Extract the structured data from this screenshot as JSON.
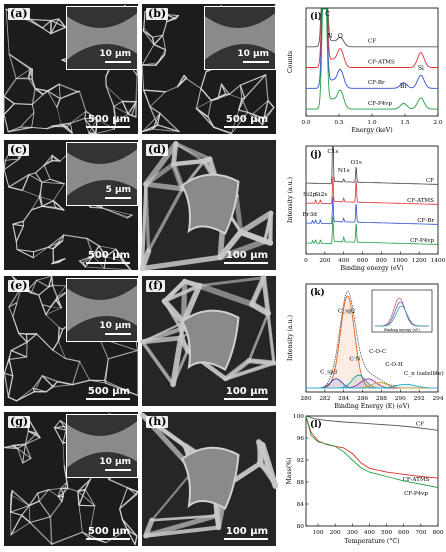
{
  "panels": {
    "a": {
      "label": "(a)",
      "scale": "500 μm",
      "inset_scale": "10 μm"
    },
    "b": {
      "label": "(b)",
      "scale": "500 μm",
      "inset_scale": "10 μm"
    },
    "c": {
      "label": "(c)",
      "scale": "500 μm",
      "inset_scale": "5 μm"
    },
    "d": {
      "label": "(d)",
      "scale": "100 μm"
    },
    "e": {
      "label": "(e)",
      "scale": "500 μm",
      "inset_scale": "10 μm"
    },
    "f": {
      "label": "(f)",
      "scale": "100 μm"
    },
    "g": {
      "label": "(g)",
      "scale": "500 μm",
      "inset_scale": "10 μm"
    },
    "h": {
      "label": "(h)",
      "scale": "100 μm"
    }
  },
  "chart_data": [
    {
      "id": "i",
      "label": "(i)",
      "type": "line",
      "xlabel": "Energy (keV)",
      "ylabel": "Counts",
      "xlim": [
        0.0,
        2.0
      ],
      "xticks": [
        "0.0",
        "0.5",
        "1.0",
        "1.5",
        "2.0"
      ],
      "peak_labels": [
        "C",
        "N",
        "O",
        "Si",
        "Br"
      ],
      "series": [
        {
          "name": "CF",
          "color": "#555555",
          "offset": 3,
          "peaks": [
            [
              0.28,
              10
            ],
            [
              0.39,
              0.3
            ],
            [
              0.52,
              0.5
            ]
          ]
        },
        {
          "name": "CF-ATMS",
          "color": "#e03030",
          "offset": 2,
          "peaks": [
            [
              0.28,
              9
            ],
            [
              0.39,
              0.4
            ],
            [
              0.52,
              1.0
            ],
            [
              1.74,
              0.8
            ]
          ]
        },
        {
          "name": "CF-Br",
          "color": "#3050d0",
          "offset": 1,
          "peaks": [
            [
              0.28,
              9
            ],
            [
              0.39,
              0.4
            ],
            [
              0.52,
              1.0
            ],
            [
              1.48,
              0.3
            ],
            [
              1.74,
              0.7
            ]
          ]
        },
        {
          "name": "CF-P4vp",
          "color": "#20a040",
          "offset": 0,
          "peaks": [
            [
              0.28,
              9
            ],
            [
              0.39,
              0.5
            ],
            [
              0.52,
              1.0
            ],
            [
              1.48,
              0.3
            ],
            [
              1.74,
              0.6
            ]
          ]
        }
      ]
    },
    {
      "id": "j",
      "label": "(j)",
      "type": "line",
      "xlabel": "Binding energy (eV)",
      "ylabel": "Intensity (a.u.)",
      "xlim": [
        0,
        1400
      ],
      "xticks": [
        "0",
        "200",
        "400",
        "600",
        "800",
        "1000",
        "1200",
        "1400"
      ],
      "peak_labels": [
        "C1s",
        "N1s",
        "O1s",
        "Si2p",
        "Si2s",
        "Br3d"
      ],
      "series": [
        {
          "name": "CF",
          "color": "#444444",
          "offset": 3,
          "peaks": [
            [
              285,
              7
            ],
            [
              400,
              0.3
            ],
            [
              532,
              1.8
            ]
          ]
        },
        {
          "name": "CF-ATMS",
          "color": "#e03030",
          "offset": 2,
          "peaks": [
            [
              102,
              0.4
            ],
            [
              153,
              0.4
            ],
            [
              285,
              3
            ],
            [
              400,
              0.4
            ],
            [
              532,
              2.5
            ]
          ]
        },
        {
          "name": "CF-Br",
          "color": "#3050d0",
          "offset": 1,
          "peaks": [
            [
              70,
              0.3
            ],
            [
              102,
              0.4
            ],
            [
              153,
              0.4
            ],
            [
              285,
              3
            ],
            [
              400,
              0.4
            ],
            [
              532,
              2.2
            ]
          ]
        },
        {
          "name": "CF-P4vp",
          "color": "#20a040",
          "offset": 0,
          "peaks": [
            [
              70,
              0.3
            ],
            [
              102,
              0.4
            ],
            [
              153,
              0.4
            ],
            [
              285,
              3
            ],
            [
              400,
              0.5
            ],
            [
              532,
              2.2
            ]
          ]
        }
      ]
    },
    {
      "id": "k",
      "label": "(k)",
      "type": "line",
      "xlabel": "Binding Energy (E) (eV)",
      "ylabel": "Intensity (a.u.)",
      "xlim": [
        280,
        294
      ],
      "xticks": [
        "280",
        "282",
        "284",
        "286",
        "288",
        "290",
        "292",
        "294"
      ],
      "peak_labels": [
        "C_sp2",
        "C_sp3",
        "C-N",
        "C-O-C",
        "C-O-H",
        "C_π (satellite)"
      ],
      "components": [
        {
          "name": "C_sp2",
          "color": "#e06020",
          "center": 284.4,
          "amp": 1.0,
          "width": 0.75
        },
        {
          "name": "C_sp3",
          "color": "#3040c0",
          "center": 283.2,
          "amp": 0.1,
          "width": 0.6
        },
        {
          "name": "C-N",
          "color": "#20a0a0",
          "center": 285.6,
          "amp": 0.14,
          "width": 0.7
        },
        {
          "name": "C-O-C",
          "color": "#a030a0",
          "center": 286.6,
          "amp": 0.1,
          "width": 0.8
        },
        {
          "name": "C-O-H",
          "color": "#d0a020",
          "center": 287.8,
          "amp": 0.06,
          "width": 0.8
        },
        {
          "name": "C_π (satellite)",
          "color": "#30b0d0",
          "center": 290.6,
          "amp": 0.04,
          "width": 1.0
        }
      ],
      "inset": {
        "xlabel": "Binding energy (eV)"
      }
    },
    {
      "id": "l",
      "label": "(l)",
      "type": "line",
      "xlabel": "Temperature (°C)",
      "ylabel": "Mass(%)",
      "xlim": [
        30,
        800
      ],
      "ylim": [
        80,
        100
      ],
      "xticks": [
        "100",
        "200",
        "300",
        "400",
        "500",
        "600",
        "700",
        "800"
      ],
      "yticks": [
        "80",
        "84",
        "88",
        "92",
        "96",
        "100"
      ],
      "series": [
        {
          "name": "CF",
          "color": "#555555",
          "x": [
            30,
            80,
            150,
            250,
            350,
            450,
            550,
            650,
            750,
            800
          ],
          "y": [
            100,
            99.5,
            99.2,
            98.9,
            98.7,
            98.5,
            98.3,
            98.0,
            97.6,
            97.4
          ]
        },
        {
          "name": "CF-ATMS",
          "color": "#e03030",
          "x": [
            30,
            60,
            100,
            150,
            200,
            250,
            300,
            350,
            400,
            500,
            600,
            700,
            800
          ],
          "y": [
            100,
            97.0,
            95.5,
            94.8,
            94.5,
            94.2,
            93.2,
            91.5,
            90.5,
            89.8,
            89.4,
            89.0,
            88.7
          ]
        },
        {
          "name": "CF-P4vp",
          "color": "#20a040",
          "x": [
            30,
            60,
            100,
            150,
            200,
            250,
            300,
            350,
            400,
            500,
            600,
            700,
            800
          ],
          "y": [
            100,
            96.5,
            95.3,
            94.9,
            94.5,
            93.5,
            92.0,
            90.6,
            89.8,
            89.0,
            88.2,
            87.6,
            87.0
          ]
        }
      ]
    }
  ]
}
